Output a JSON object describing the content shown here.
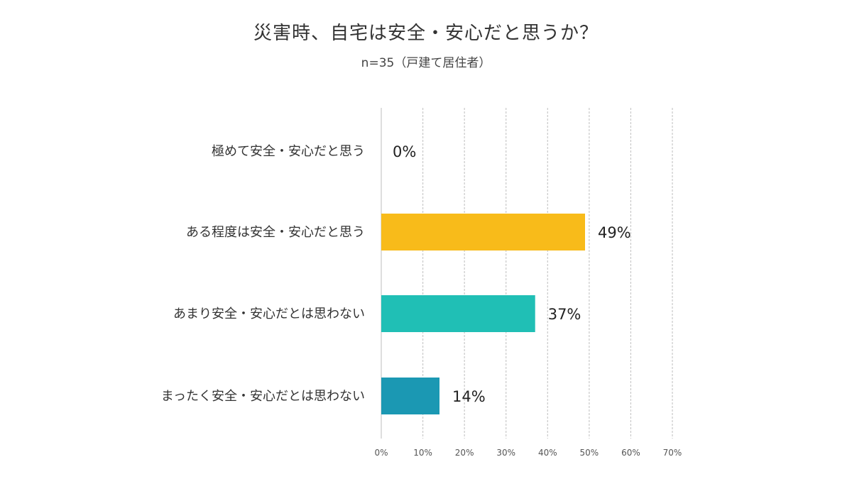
{
  "chart_data": {
    "type": "bar",
    "orientation": "horizontal",
    "title": "災害時、自宅は安全・安心だと思うか？",
    "subtitle": "n=35（戸建て居住者）",
    "categories": [
      "極めて安全・安心だと思う",
      "ある程度は安全・安心だと思う",
      "あまり安全・安心だとは思わない",
      "まったく安全・安心だとは思わない"
    ],
    "values": [
      0,
      49,
      37,
      14
    ],
    "value_labels": [
      "0%",
      "49%",
      "37%",
      "14%"
    ],
    "colors": [
      "#f8bb1a",
      "#f8bb1a",
      "#20bfb5",
      "#1b98b3"
    ],
    "xlim": [
      0,
      70
    ],
    "xticks": [
      0,
      10,
      20,
      30,
      40,
      50,
      60,
      70
    ],
    "xtick_labels": [
      "0%",
      "10%",
      "20%",
      "30%",
      "40%",
      "50%",
      "60%",
      "70%"
    ],
    "grid": true,
    "gridline_color": "#c8c8c8",
    "legend": "none"
  }
}
